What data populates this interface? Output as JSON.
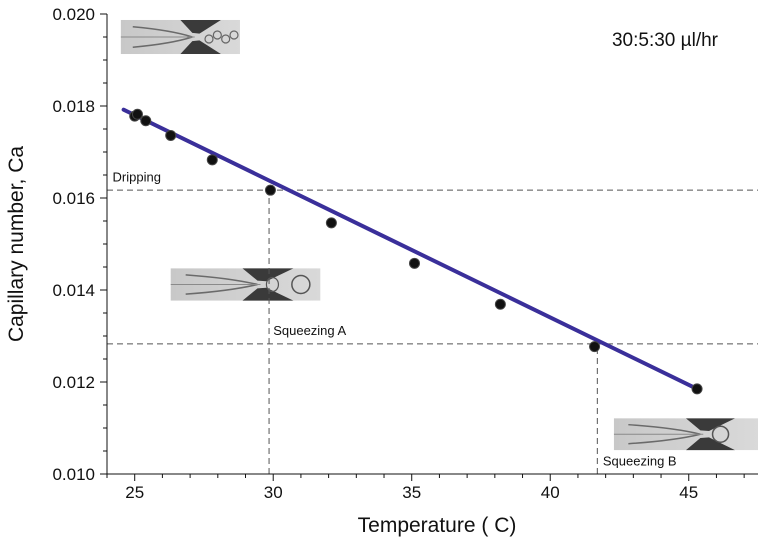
{
  "chart_data": {
    "type": "line",
    "title": "",
    "xlabel": "Temperature ( C)",
    "ylabel": "Capillary number, Ca",
    "xlim": [
      24,
      47.5
    ],
    "ylim": [
      0.01,
      0.02
    ],
    "x_ticks": [
      25,
      30,
      35,
      40,
      45
    ],
    "x_tick_labels": [
      "25",
      "30",
      "35",
      "40",
      "45"
    ],
    "y_ticks": [
      0.01,
      0.012,
      0.014,
      0.016,
      0.018,
      0.02
    ],
    "y_tick_labels": [
      "0.010",
      "0.012",
      "0.014",
      "0.016",
      "0.018",
      "0.020"
    ],
    "grid": false,
    "series": [
      {
        "name": "",
        "color": "#3a2f9a",
        "fit_line": {
          "x": [
            24.6,
            45.3
          ],
          "y": [
            0.01792,
            0.01185
          ]
        },
        "points": {
          "x": [
            25.0,
            25.1,
            25.4,
            26.3,
            27.8,
            29.9,
            32.1,
            35.1,
            38.2,
            41.6,
            45.3
          ],
          "y": [
            0.01778,
            0.01782,
            0.01768,
            0.01736,
            0.01683,
            0.01617,
            0.01546,
            0.01458,
            0.01369,
            0.01277,
            0.01185
          ]
        }
      }
    ],
    "reference_lines": [
      {
        "axis": "y",
        "value": 0.01617,
        "x_from": 24,
        "x_to": 47.5
      },
      {
        "axis": "y",
        "value": 0.01283,
        "x_from": 24,
        "x_to": 47.5
      },
      {
        "axis": "x",
        "value": 29.85,
        "y_from": 0.01,
        "y_to": 0.01617
      },
      {
        "axis": "x",
        "value": 41.7,
        "y_from": 0.01,
        "y_to": 0.01283
      }
    ],
    "annotations": [
      {
        "text": "Dripping",
        "x": 24.2,
        "y": 0.01636
      },
      {
        "text": "Squeezing A",
        "x": 30.0,
        "y": 0.01302
      },
      {
        "text": "Squeezing B",
        "x": 41.9,
        "y": 0.01018
      }
    ],
    "flow_rate_label": "30:5:30 µl/hr",
    "insets": [
      {
        "name": "inset-dripping",
        "x0": 24.5,
        "x1": 28.8,
        "y0": 0.01913,
        "y1": 0.01987,
        "stage": "dripping"
      },
      {
        "name": "inset-squeezing-a",
        "x0": 26.3,
        "x1": 31.7,
        "y0": 0.01377,
        "y1": 0.01447,
        "stage": "squeezing-a"
      },
      {
        "name": "inset-squeezing-b",
        "x0": 42.3,
        "x1": 47.5,
        "y0": 0.01052,
        "y1": 0.01121,
        "stage": "squeezing-b"
      }
    ]
  }
}
